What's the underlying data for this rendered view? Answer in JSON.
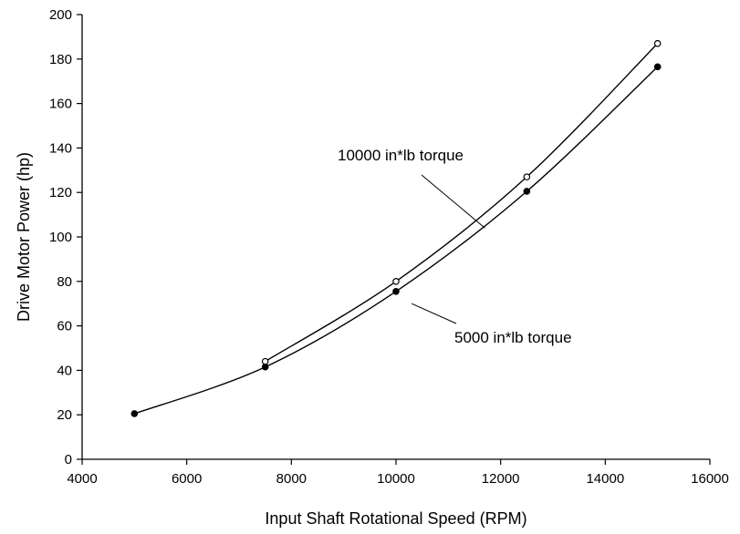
{
  "chart_data": {
    "type": "line",
    "title": "",
    "xlabel": "Input Shaft Rotational Speed (RPM)",
    "ylabel": "Drive Motor Power (hp)",
    "xlim": [
      4000,
      16000
    ],
    "ylim": [
      0,
      200
    ],
    "xticks": [
      4000,
      6000,
      8000,
      10000,
      12000,
      14000,
      16000
    ],
    "yticks": [
      0,
      20,
      40,
      60,
      80,
      100,
      120,
      140,
      160,
      180,
      200
    ],
    "xtick_labels": [
      "4000",
      "6000",
      "8000",
      "10000",
      "12000",
      "14000",
      "16000"
    ],
    "ytick_labels": [
      "0",
      "20",
      "40",
      "60",
      "80",
      "100",
      "120",
      "140",
      "160",
      "180",
      "200"
    ],
    "grid": false,
    "legend": "none",
    "series": [
      {
        "name": "10000 in*lb torque",
        "marker": "open-circle",
        "x": [
          7500,
          10000,
          12500,
          15000
        ],
        "y": [
          44,
          80,
          127,
          187
        ]
      },
      {
        "name": "5000 in*lb torque",
        "marker": "filled-circle",
        "x": [
          5000,
          7500,
          10000,
          12500,
          15000
        ],
        "y": [
          20.5,
          41.5,
          75.5,
          120.5,
          176.5
        ]
      }
    ],
    "annotations": [
      {
        "text": "10000 in*lb torque",
        "series": 0,
        "x": 11700,
        "y": 104
      },
      {
        "text": "5000 in*lb torque",
        "series": 1,
        "x": 10300,
        "y": 70
      }
    ]
  }
}
